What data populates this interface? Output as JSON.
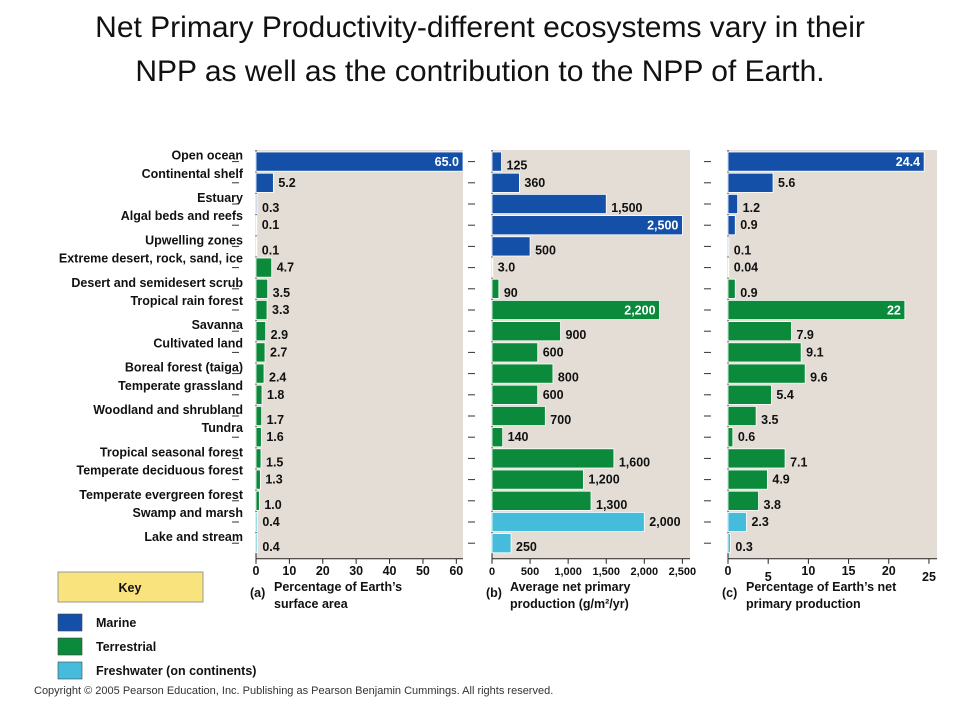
{
  "title_lines": [
    "Net Primary Productivity-different  ecosystems vary in their",
    "NPP as well as the contribution to the NPP of Earth."
  ],
  "copyright": "Copyright © 2005 Pearson Education, Inc. Publishing as Pearson Benjamin Cummings. All rights reserved.",
  "colors": {
    "marine": "#1450a8",
    "terrestrial": "#0c8a3c",
    "freshwater": "#46bcdc",
    "panel_bg": "#e3ddd6",
    "key_bg": "#f8e37c"
  },
  "chart_data": {
    "type": "bar",
    "orientation": "horizontal",
    "categories": [
      "Open ocean",
      "Continental shelf",
      "Estuary",
      "Algal beds and reefs",
      "Upwelling zones",
      "Extreme desert, rock, sand, ice",
      "Desert and semidesert scrub",
      "Tropical rain forest",
      "Savanna",
      "Cultivated land",
      "Boreal forest (taiga)",
      "Temperate grassland",
      "Woodland and shrubland",
      "Tundra",
      "Tropical seasonal forest",
      "Temperate deciduous forest",
      "Temperate evergreen forest",
      "Swamp and marsh",
      "Lake and stream"
    ],
    "category_types": [
      "marine",
      "marine",
      "marine",
      "marine",
      "marine",
      "terrestrial",
      "terrestrial",
      "terrestrial",
      "terrestrial",
      "terrestrial",
      "terrestrial",
      "terrestrial",
      "terrestrial",
      "terrestrial",
      "terrestrial",
      "terrestrial",
      "terrestrial",
      "freshwater",
      "freshwater"
    ],
    "panels": [
      {
        "letter": "(a)",
        "xlabel_lines": [
          "Percentage of Earth’s",
          "surface area"
        ],
        "xlim": [
          0,
          62
        ],
        "ticks": [
          0,
          10,
          20,
          30,
          40,
          50,
          60
        ],
        "tick_labels": [
          "0",
          "10",
          "20",
          "30",
          "40",
          "50",
          "60"
        ],
        "values": [
          65.0,
          5.2,
          0.3,
          0.1,
          0.1,
          4.7,
          3.5,
          3.3,
          2.9,
          2.7,
          2.4,
          1.8,
          1.7,
          1.6,
          1.5,
          1.3,
          1.0,
          0.4,
          0.4
        ],
        "labels": [
          "65.0",
          "5.2",
          "0.3",
          "0.1",
          "0.1",
          "4.7",
          "3.5",
          "3.3",
          "2.9",
          "2.7",
          "2.4",
          "1.8",
          "1.7",
          "1.6",
          "1.5",
          "1.3",
          "1.0",
          "0.4",
          "0.4"
        ]
      },
      {
        "letter": "(b)",
        "xlabel_lines": [
          "Average net primary",
          "production (g/m²/yr)"
        ],
        "xlim": [
          0,
          2600
        ],
        "ticks": [
          0,
          500,
          1000,
          1500,
          2000,
          2500
        ],
        "tick_labels": [
          "0",
          "500",
          "1,000",
          "1,500",
          "2,000",
          "2,500"
        ],
        "values": [
          125,
          360,
          1500,
          2500,
          500,
          3.0,
          90,
          2200,
          900,
          600,
          800,
          600,
          700,
          140,
          1600,
          1200,
          1300,
          2000,
          250
        ],
        "labels": [
          "125",
          "360",
          "1,500",
          "2,500",
          "500",
          "3.0",
          "90",
          "2,200",
          "900",
          "600",
          "800",
          "600",
          "700",
          "140",
          "1,600",
          "1,200",
          "1,300",
          "2,000",
          "250"
        ]
      },
      {
        "letter": "(c)",
        "xlabel_lines": [
          "Percentage of Earth’s net",
          "primary production"
        ],
        "xlim": [
          0,
          26
        ],
        "ticks": [
          0,
          5,
          10,
          15,
          20,
          25
        ],
        "tick_labels": [
          "0",
          "5",
          "10",
          "15",
          "20",
          "25"
        ],
        "values": [
          24.4,
          5.6,
          1.2,
          0.9,
          0.1,
          0.04,
          0.9,
          22,
          7.9,
          9.1,
          9.6,
          5.4,
          3.5,
          0.6,
          7.1,
          4.9,
          3.8,
          2.3,
          0.3
        ],
        "labels": [
          "24.4",
          "5.6",
          "1.2",
          "0.9",
          "0.1",
          "0.04",
          "0.9",
          "22",
          "7.9",
          "9.1",
          "9.6",
          "5.4",
          "3.5",
          "0.6",
          "7.1",
          "4.9",
          "3.8",
          "2.3",
          "0.3"
        ]
      }
    ],
    "legend": {
      "title": "Key",
      "items": [
        {
          "name": "Marine",
          "type": "marine"
        },
        {
          "name": "Terrestrial",
          "type": "terrestrial"
        },
        {
          "name": "Freshwater (on continents)",
          "type": "freshwater"
        }
      ]
    }
  }
}
